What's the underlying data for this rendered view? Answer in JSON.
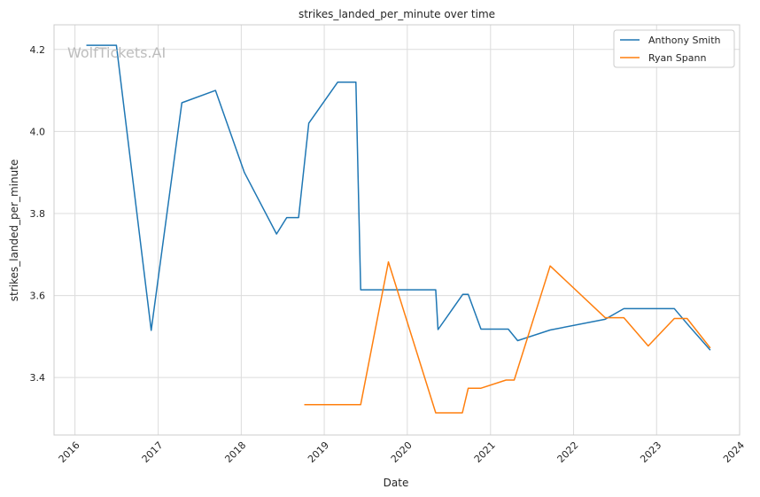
{
  "watermark": "WolfTickets.AI",
  "chart_data": {
    "type": "line",
    "title": "strikes_landed_per_minute over time",
    "xlabel": "Date",
    "ylabel": "strikes_landed_per_minute",
    "xlim": [
      "2015-10-01",
      "2024-01-01"
    ],
    "ylim": [
      3.26,
      4.26
    ],
    "x_ticks": [
      "2016",
      "2017",
      "2018",
      "2019",
      "2020",
      "2021",
      "2022",
      "2023",
      "2024"
    ],
    "y_ticks": [
      "3.4",
      "3.6",
      "3.8",
      "4.0",
      "4.2"
    ],
    "grid": true,
    "legend_position": "top-right",
    "colors": {
      "Anthony Smith": "#1f77b4",
      "Ryan Spann": "#ff7f0e"
    },
    "series": [
      {
        "name": "Anthony Smith",
        "points": [
          [
            "2016-02-20",
            4.21
          ],
          [
            "2016-07-01",
            4.21
          ],
          [
            "2016-12-01",
            3.515
          ],
          [
            "2017-04-15",
            4.07
          ],
          [
            "2017-09-10",
            4.1
          ],
          [
            "2018-01-15",
            3.9
          ],
          [
            "2018-06-05",
            3.75
          ],
          [
            "2018-07-20",
            3.79
          ],
          [
            "2018-09-10",
            3.79
          ],
          [
            "2018-10-25",
            4.02
          ],
          [
            "2019-03-01",
            4.12
          ],
          [
            "2019-05-20",
            4.12
          ],
          [
            "2019-06-10",
            3.614
          ],
          [
            "2020-05-05",
            3.614
          ],
          [
            "2020-05-15",
            3.517
          ],
          [
            "2020-09-01",
            3.603
          ],
          [
            "2020-09-25",
            3.603
          ],
          [
            "2020-11-20",
            3.518
          ],
          [
            "2021-03-20",
            3.518
          ],
          [
            "2021-04-30",
            3.49
          ],
          [
            "2021-09-20",
            3.516
          ],
          [
            "2022-05-20",
            3.542
          ],
          [
            "2022-08-10",
            3.568
          ],
          [
            "2023-03-20",
            3.568
          ],
          [
            "2023-05-25",
            3.525
          ],
          [
            "2023-08-25",
            3.467
          ]
        ]
      },
      {
        "name": "Ryan Spann",
        "points": [
          [
            "2018-10-05",
            3.334
          ],
          [
            "2019-06-10",
            3.334
          ],
          [
            "2019-10-10",
            3.682
          ],
          [
            "2020-05-05",
            3.314
          ],
          [
            "2020-08-30",
            3.314
          ],
          [
            "2020-09-25",
            3.374
          ],
          [
            "2020-11-20",
            3.374
          ],
          [
            "2021-03-10",
            3.394
          ],
          [
            "2021-04-15",
            3.394
          ],
          [
            "2021-09-20",
            3.672
          ],
          [
            "2022-05-20",
            3.546
          ],
          [
            "2022-08-10",
            3.546
          ],
          [
            "2022-11-25",
            3.477
          ],
          [
            "2023-03-20",
            3.544
          ],
          [
            "2023-05-15",
            3.544
          ],
          [
            "2023-08-25",
            3.472
          ]
        ]
      }
    ]
  }
}
